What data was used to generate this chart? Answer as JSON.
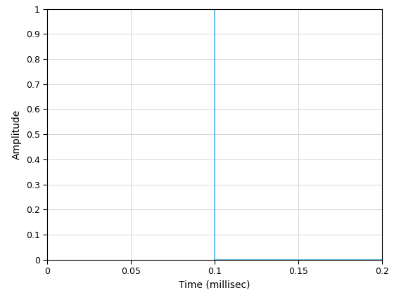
{
  "title": "",
  "xlabel": "Time (millisec)",
  "ylabel": "Amplitude",
  "xlim": [
    0,
    0.2
  ],
  "ylim": [
    0,
    1.0
  ],
  "xticks": [
    0,
    0.05,
    0.1,
    0.15,
    0.2
  ],
  "yticks": [
    0,
    0.1,
    0.2,
    0.3,
    0.4,
    0.5,
    0.6,
    0.7,
    0.8,
    0.9,
    1.0
  ],
  "line_color": "#4db3e6",
  "line_width": 1.2,
  "background_color": "#ffffff",
  "grid_color": "#d0d0d0",
  "step_on": 0.0,
  "step_off": 0.1,
  "amplitude": 1.0,
  "figsize": [
    5.6,
    4.2
  ],
  "dpi": 100,
  "xlabel_fontsize": 10,
  "ylabel_fontsize": 10,
  "tick_fontsize": 9
}
